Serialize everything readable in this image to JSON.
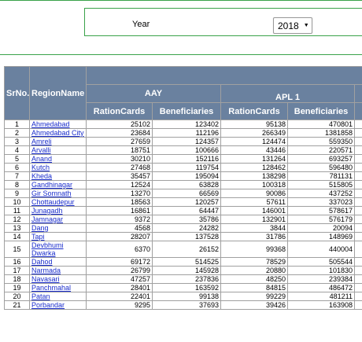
{
  "filter": {
    "year_label": "Year",
    "year_value": "2018",
    "caret": "▼"
  },
  "table": {
    "headers": {
      "sr_no": "SrNo.",
      "region": "RegionName",
      "group_aay": "AAY",
      "group_apl1": "APL 1",
      "ration_cards": "RationCards",
      "beneficiaries": "Beneficiaries"
    },
    "rows": [
      {
        "sr": "1",
        "region": "Ahmedabad",
        "aay_cards": "25102",
        "aay_ben": "123402",
        "apl_cards": "95138",
        "apl_ben": "470801"
      },
      {
        "sr": "2",
        "region": "Ahmedabad City",
        "aay_cards": "23684",
        "aay_ben": "112196",
        "apl_cards": "266349",
        "apl_ben": "1381858"
      },
      {
        "sr": "3",
        "region": "Amreli",
        "aay_cards": "27659",
        "aay_ben": "124357",
        "apl_cards": "124474",
        "apl_ben": "559350"
      },
      {
        "sr": "4",
        "region": "Arvalli",
        "aay_cards": "18751",
        "aay_ben": "100666",
        "apl_cards": "43446",
        "apl_ben": "220571"
      },
      {
        "sr": "5",
        "region": "Anand",
        "aay_cards": "30210",
        "aay_ben": "152116",
        "apl_cards": "131264",
        "apl_ben": "693257"
      },
      {
        "sr": "6",
        "region": "Kutch",
        "aay_cards": "27468",
        "aay_ben": "119754",
        "apl_cards": "128462",
        "apl_ben": "596480"
      },
      {
        "sr": "7",
        "region": "Kheda",
        "aay_cards": "35457",
        "aay_ben": "195094",
        "apl_cards": "138298",
        "apl_ben": "781131"
      },
      {
        "sr": "8",
        "region": "Gandhinagar",
        "aay_cards": "12524",
        "aay_ben": "63828",
        "apl_cards": "100318",
        "apl_ben": "515805"
      },
      {
        "sr": "9",
        "region": "Gir Somnath",
        "aay_cards": "13270",
        "aay_ben": "66569",
        "apl_cards": "90086",
        "apl_ben": "437252"
      },
      {
        "sr": "10",
        "region": "Chottaudepur",
        "aay_cards": "18563",
        "aay_ben": "120257",
        "apl_cards": "57611",
        "apl_ben": "337023"
      },
      {
        "sr": "11",
        "region": "Junagadh",
        "aay_cards": "16861",
        "aay_ben": "64447",
        "apl_cards": "146001",
        "apl_ben": "578617"
      },
      {
        "sr": "12",
        "region": "Jamnagar",
        "aay_cards": "9372",
        "aay_ben": "35786",
        "apl_cards": "132901",
        "apl_ben": "576179"
      },
      {
        "sr": "13",
        "region": "Dang",
        "aay_cards": "4568",
        "aay_ben": "24282",
        "apl_cards": "3844",
        "apl_ben": "20094"
      },
      {
        "sr": "14",
        "region": "Tapi",
        "aay_cards": "28207",
        "aay_ben": "137528",
        "apl_cards": "31786",
        "apl_ben": "148969"
      },
      {
        "sr": "15",
        "region": "Devbhumi Dwarka",
        "aay_cards": "6370",
        "aay_ben": "26152",
        "apl_cards": "99368",
        "apl_ben": "440004",
        "tall": true
      },
      {
        "sr": "16",
        "region": "Dahod",
        "aay_cards": "69172",
        "aay_ben": "514525",
        "apl_cards": "78529",
        "apl_ben": "505544"
      },
      {
        "sr": "17",
        "region": "Narmada",
        "aay_cards": "26799",
        "aay_ben": "145928",
        "apl_cards": "20880",
        "apl_ben": "101830"
      },
      {
        "sr": "18",
        "region": "Navasari",
        "aay_cards": "47257",
        "aay_ben": "237836",
        "apl_cards": "48250",
        "apl_ben": "239384"
      },
      {
        "sr": "19",
        "region": "Panchmahal",
        "aay_cards": "28401",
        "aay_ben": "163592",
        "apl_cards": "84815",
        "apl_ben": "486472"
      },
      {
        "sr": "20",
        "region": "Patan",
        "aay_cards": "22401",
        "aay_ben": "99138",
        "apl_cards": "99229",
        "apl_ben": "481211"
      },
      {
        "sr": "21",
        "region": "Porbandar",
        "aay_cards": "9295",
        "aay_ben": "37693",
        "apl_cards": "39426",
        "apl_ben": "163908"
      }
    ]
  }
}
